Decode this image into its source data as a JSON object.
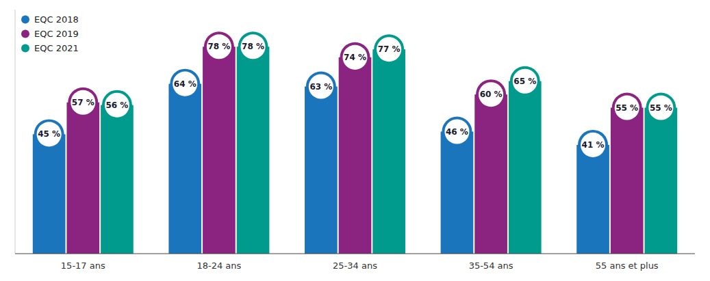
{
  "chart_data": {
    "type": "bar",
    "categories": [
      "15-17 ans",
      "18-24 ans",
      "25-34 ans",
      "35-54 ans",
      "55 ans et plus"
    ],
    "series": [
      {
        "name": "EQC 2018",
        "color": "#1b75bc",
        "values": [
          45,
          64,
          63,
          46,
          41
        ],
        "value_labels": [
          "45 %",
          "64 %",
          "63 %",
          "46 %",
          "41 %"
        ]
      },
      {
        "name": "EQC 2019",
        "color": "#8b2480",
        "values": [
          57,
          78,
          74,
          60,
          55
        ],
        "value_labels": [
          "57 %",
          "78 %",
          "74 %",
          "60 %",
          "55 %"
        ]
      },
      {
        "name": "EQC 2021",
        "color": "#009b8d",
        "values": [
          56,
          78,
          77,
          65,
          55
        ],
        "value_labels": [
          "56 %",
          "78 %",
          "77 %",
          "65 %",
          "55 %"
        ]
      }
    ],
    "ylim": [
      0,
      92
    ],
    "grid": false,
    "legend": "upper left",
    "data_labels": true,
    "tick_labels": "x"
  }
}
